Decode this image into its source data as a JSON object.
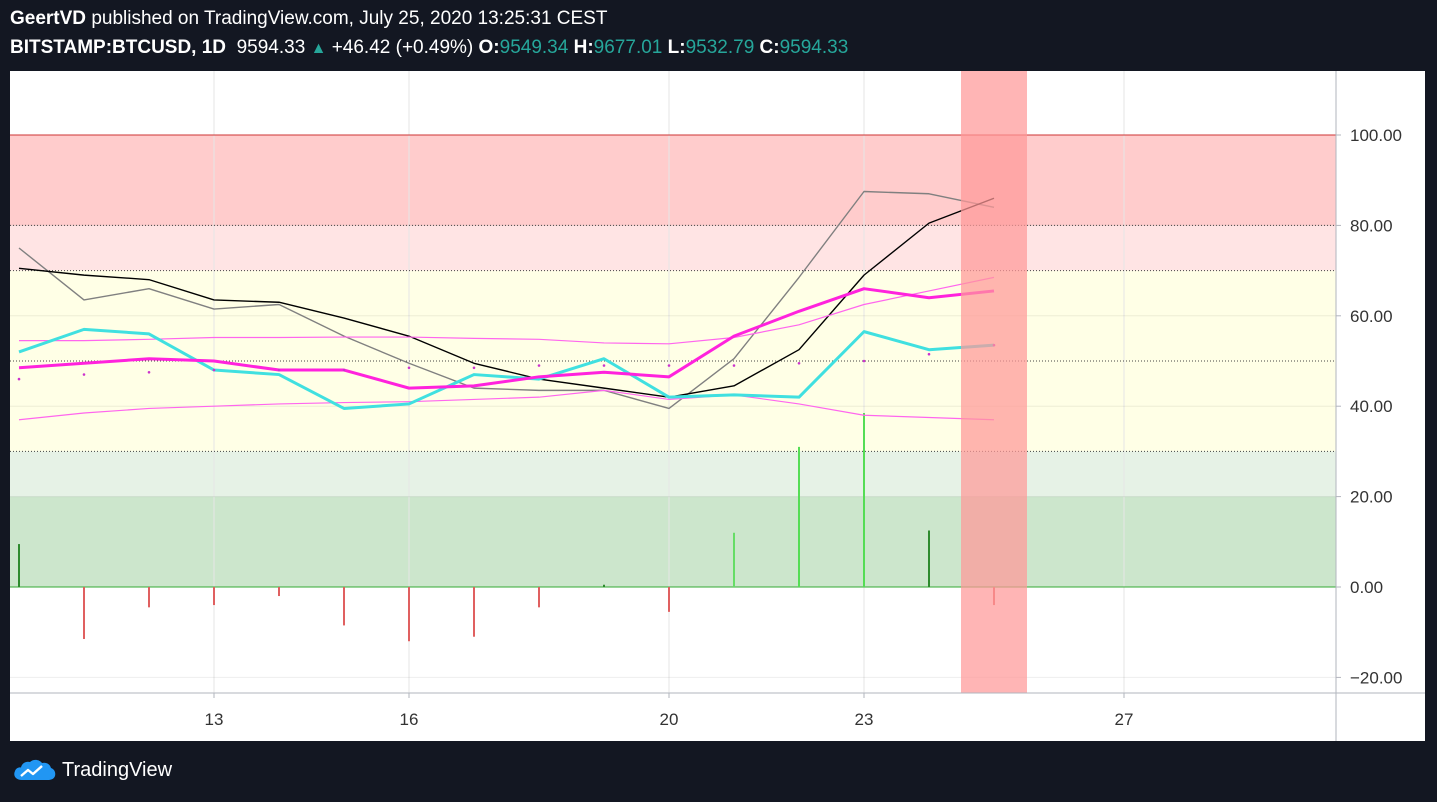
{
  "header": {
    "author": "GeertVD",
    "published": "published on TradingView.com, July 25, 2020 13:25:31 CEST",
    "symbol": "BITSTAMP:BTCUSD, 1D",
    "price": "9594.33",
    "change": "+46.42 (+0.49%)",
    "open_label": "O:",
    "open": "9549.34",
    "high_label": "H:",
    "high": "9677.01",
    "low_label": "L:",
    "low": "9532.79",
    "close_label": "C:",
    "close": "9594.33"
  },
  "footer": {
    "brand": "TradingView",
    "icon": "tradingview-cloud-icon"
  },
  "colors": {
    "zone_overbought": "#ffcccc",
    "zone_upper": "#ffe4e4",
    "zone_mid": "#ffffe6",
    "zone_lower": "#e6f2e6",
    "zone_oversold": "#cce6cc",
    "highlight": "#ff9999",
    "cyan": "#40e0e0",
    "magenta": "#ff22dd",
    "hist_up": "#33cc33",
    "hist_down": "#dd4444"
  },
  "chart_data": {
    "type": "line",
    "x": [
      "Jul 10",
      "Jul 11",
      "Jul 12",
      "Jul 13",
      "Jul 14",
      "Jul 15",
      "Jul 16",
      "Jul 17",
      "Jul 18",
      "Jul 19",
      "Jul 20",
      "Jul 21",
      "Jul 22",
      "Jul 23",
      "Jul 24",
      "Jul 25"
    ],
    "x_ticks": [
      "13",
      "16",
      "20",
      "23",
      "27"
    ],
    "y_ticks": [
      "100.00",
      "80.00",
      "60.00",
      "40.00",
      "20.00",
      "0.00",
      "−20.00"
    ],
    "ylim": [
      -23,
      115
    ],
    "zones": [
      {
        "from": 80,
        "to": 100,
        "color": "#ffcccc"
      },
      {
        "from": 70,
        "to": 80,
        "color": "#ffe4e4"
      },
      {
        "from": 50,
        "to": 70,
        "color": "#ffffe6"
      },
      {
        "from": 30,
        "to": 50,
        "color": "#ffffe6"
      },
      {
        "from": 20,
        "to": 30,
        "color": "#e6f2e6"
      },
      {
        "from": 0,
        "to": 20,
        "color": "#cce6cc"
      }
    ],
    "highlighted_day": "Jul 25",
    "series": [
      {
        "color": "#808080",
        "values": [
          75,
          63.5,
          66,
          61.5,
          62.5,
          55.5,
          49.5,
          44,
          43.5,
          43.5,
          39.5,
          50.5,
          68.5,
          87.5,
          87,
          84
        ]
      },
      {
        "color": "#000000",
        "values": [
          70.5,
          69,
          68,
          63.5,
          63,
          59.5,
          55.5,
          49.5,
          46,
          44,
          42,
          44.5,
          52.5,
          69,
          80.5,
          86
        ]
      },
      {
        "color": "#ff66ee",
        "values": [
          54.5,
          54.5,
          54.8,
          55.2,
          55.2,
          55.3,
          55.3,
          55,
          54.8,
          54,
          53.8,
          55.2,
          58,
          62.5,
          65.5,
          68.5
        ]
      },
      {
        "color": "#ff66ee",
        "values": [
          37,
          38.5,
          39.5,
          40,
          40.5,
          40.8,
          41,
          41.5,
          42,
          43.5,
          41.5,
          42.5,
          40.5,
          38,
          37.5,
          37
        ]
      },
      {
        "color": "#40e0e0",
        "values": [
          52,
          57,
          56,
          48,
          47,
          39.5,
          40.5,
          47,
          46,
          50.5,
          42,
          42.5,
          42,
          56.5,
          52.5,
          53.5
        ]
      },
      {
        "color": "#ff22dd",
        "values": [
          48.5,
          49.5,
          50.5,
          50,
          48,
          48,
          44,
          44.5,
          46.5,
          47.5,
          46.5,
          55.5,
          61,
          66,
          64,
          65.5
        ]
      }
    ],
    "dots": [
      46,
      47,
      47.5,
      48,
      48,
      48,
      48.5,
      48.5,
      49,
      49,
      49,
      49,
      49.5,
      50,
      51.5,
      53.5
    ],
    "histogram": [
      9.5,
      -11.5,
      -4.5,
      -4,
      -2,
      -8.5,
      -12,
      -11,
      -4.5,
      0.5,
      -5.5,
      12,
      31,
      38.5,
      12.5,
      -4
    ]
  }
}
